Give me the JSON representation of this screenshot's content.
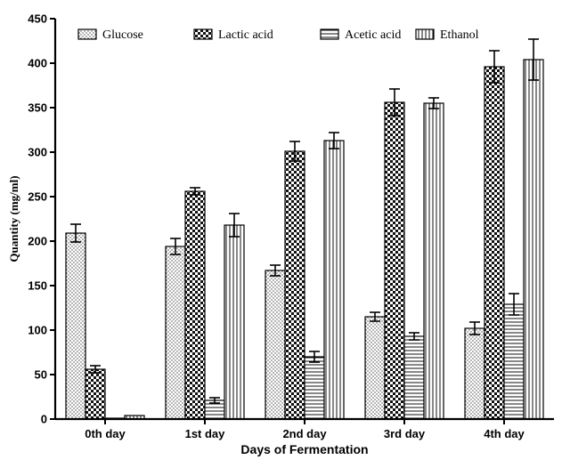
{
  "chart_data": {
    "type": "bar",
    "categories": [
      "0th day",
      "1st day",
      "2nd day",
      "3rd day",
      "4th day"
    ],
    "series": [
      {
        "name": "Glucose",
        "pattern": "dots",
        "values": [
          209,
          194,
          167,
          115,
          102
        ],
        "errors": [
          10,
          9,
          6,
          5,
          7
        ]
      },
      {
        "name": "Lactic acid",
        "pattern": "checker",
        "values": [
          56,
          256,
          301,
          356,
          396
        ],
        "errors": [
          4,
          4,
          11,
          15,
          18
        ]
      },
      {
        "name": "Acetic acid",
        "pattern": "horizontal",
        "values": [
          1,
          21,
          70,
          93,
          129
        ],
        "errors": [
          0,
          3,
          6,
          4,
          12
        ]
      },
      {
        "name": "Ethanol",
        "pattern": "vertical",
        "values": [
          4,
          218,
          313,
          355,
          404
        ],
        "errors": [
          0,
          13,
          9,
          6,
          23
        ]
      }
    ],
    "xlabel": "Days of Fermentation",
    "ylabel": "Quantity (mg/ml)",
    "ylim": [
      0,
      450
    ],
    "yticks": [
      0,
      50,
      100,
      150,
      200,
      250,
      300,
      350,
      400,
      450
    ],
    "grid": false,
    "legend_position": "top"
  }
}
